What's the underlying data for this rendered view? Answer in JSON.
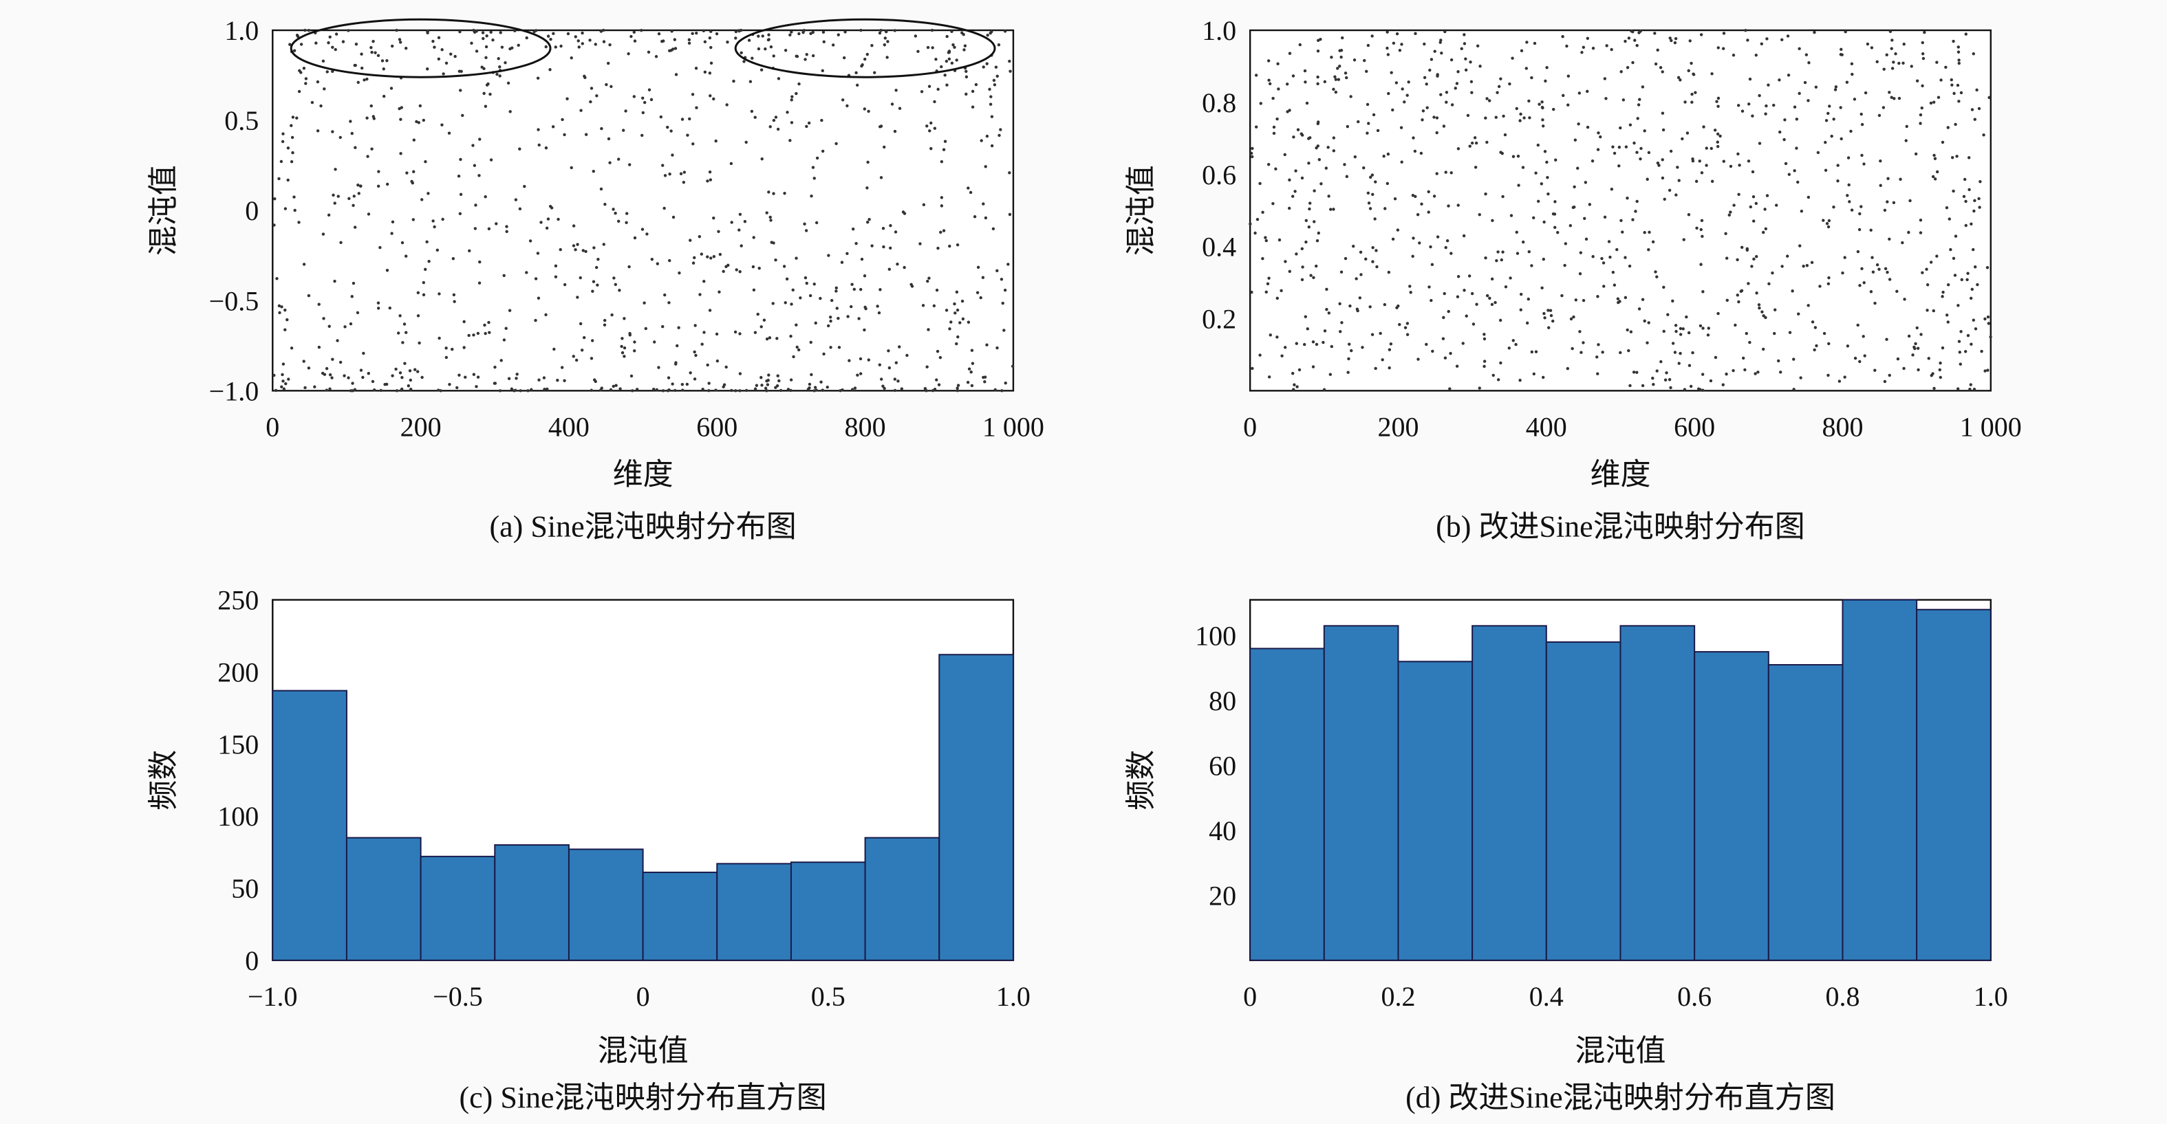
{
  "chart_data": [
    {
      "id": "a",
      "type": "scatter",
      "caption": "(a) Sine混沌映射分布图",
      "xlabel": "维度",
      "ylabel": "混沌值",
      "xlim": [
        0,
        1000
      ],
      "ylim": [
        -1,
        1
      ],
      "xticks": [
        "0",
        "200",
        "400",
        "600",
        "800",
        "1 000"
      ],
      "yticks": [
        "−1.0",
        "−0.5",
        "0",
        "0.5",
        "1.0"
      ],
      "ytick_values": [
        -1,
        -0.5,
        0,
        0.5,
        1
      ],
      "n_points": 1000,
      "distribution": "sine",
      "annotations": [
        {
          "type": "ellipse",
          "cx": 200,
          "cy": 0.9,
          "rx": 175,
          "ry": 0.16
        },
        {
          "type": "ellipse",
          "cx": 800,
          "cy": 0.9,
          "rx": 175,
          "ry": 0.16
        }
      ]
    },
    {
      "id": "b",
      "type": "scatter",
      "caption": "(b) 改进Sine混沌映射分布图",
      "xlabel": "维度",
      "ylabel": "混沌值",
      "xlim": [
        0,
        1000
      ],
      "ylim": [
        0,
        1
      ],
      "xticks": [
        "0",
        "200",
        "400",
        "600",
        "800",
        "1 000"
      ],
      "yticks": [
        "0.2",
        "0.4",
        "0.6",
        "0.8",
        "1.0"
      ],
      "ytick_values": [
        0.2,
        0.4,
        0.6,
        0.8,
        1.0
      ],
      "n_points": 1000,
      "distribution": "uniform"
    },
    {
      "id": "c",
      "type": "bar",
      "caption": "(c) Sine混沌映射分布直方图",
      "xlabel": "混沌值",
      "ylabel": "频数",
      "xlim": [
        -1,
        1
      ],
      "ylim": [
        0,
        250
      ],
      "bin_edges": [
        -1,
        -0.8,
        -0.6,
        -0.4,
        -0.2,
        0,
        0.2,
        0.4,
        0.6,
        0.8,
        1
      ],
      "values": [
        187,
        85,
        72,
        80,
        77,
        61,
        67,
        68,
        85,
        212
      ],
      "xticks": [
        "−1.0",
        "−0.5",
        "0",
        "0.5",
        "1.0"
      ],
      "xtick_values": [
        -1,
        -0.5,
        0,
        0.5,
        1
      ],
      "yticks": [
        "0",
        "50",
        "100",
        "150",
        "200",
        "250"
      ],
      "ytick_values": [
        0,
        50,
        100,
        150,
        200,
        250
      ]
    },
    {
      "id": "d",
      "type": "bar",
      "caption": "(d) 改进Sine混沌映射分布直方图",
      "xlabel": "混沌值",
      "ylabel": "频数",
      "xlim": [
        0,
        1
      ],
      "ylim": [
        0,
        111
      ],
      "bin_edges": [
        0,
        0.1,
        0.2,
        0.3,
        0.4,
        0.5,
        0.6,
        0.7,
        0.8,
        0.9,
        1
      ],
      "values": [
        96,
        103,
        92,
        103,
        98,
        103,
        95,
        91,
        111,
        108
      ],
      "xticks": [
        "0",
        "0.2",
        "0.4",
        "0.6",
        "0.8",
        "1.0"
      ],
      "xtick_values": [
        0,
        0.2,
        0.4,
        0.6,
        0.8,
        1
      ],
      "yticks": [
        "20",
        "40",
        "60",
        "80",
        "100"
      ],
      "ytick_values": [
        20,
        40,
        60,
        80,
        100
      ]
    }
  ],
  "colors": {
    "bar": "#2f7bb9",
    "point": "#333333"
  }
}
